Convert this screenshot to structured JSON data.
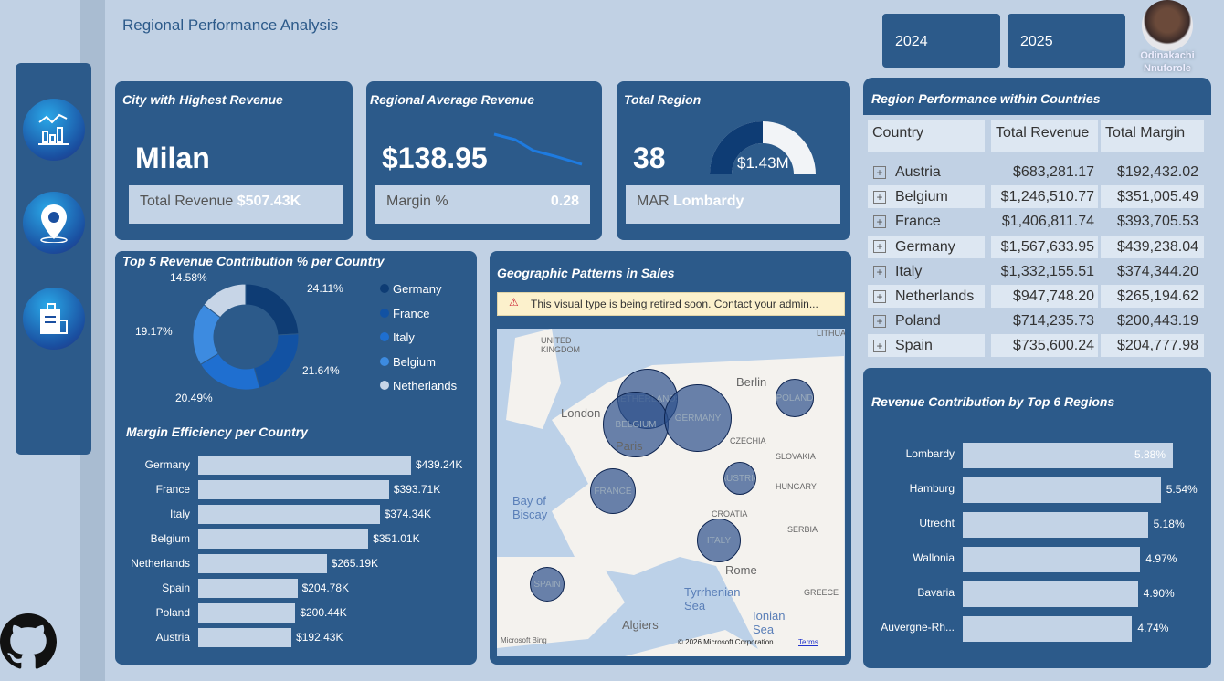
{
  "header": {
    "title": "Regional Performance Analysis",
    "years": [
      "2024",
      "2025"
    ],
    "user": {
      "name_line1": "Odinakachi",
      "name_line2": "Nnuforole"
    }
  },
  "sidebar": {
    "items": [
      {
        "icon": "analytics-chart-icon"
      },
      {
        "icon": "location-pin-icon"
      },
      {
        "icon": "dashboard-report-icon"
      }
    ],
    "footer_icon": "github-icon"
  },
  "kpi": {
    "city": {
      "title": "City with Highest Revenue",
      "value": "Milan",
      "sub_label": "Total Revenue",
      "sub_value": "$507.43K"
    },
    "avg": {
      "title": "Regional Average Revenue",
      "value": "$138.95",
      "sub_label": "Margin %",
      "sub_value": "0.28"
    },
    "region": {
      "title": "Total Region",
      "value": "38",
      "gauge_value": "$1.43M",
      "sub_label": "MAR",
      "sub_value": "Lombardy"
    }
  },
  "donut": {
    "title": "Top 5 Revenue Contribution % per Country",
    "slices": [
      {
        "name": "Germany",
        "pct": 24.11,
        "label": "24.11%",
        "color": "#0e3c74"
      },
      {
        "name": "France",
        "pct": 21.64,
        "label": "21.64%",
        "color": "#1252a3"
      },
      {
        "name": "Italy",
        "pct": 20.49,
        "label": "20.49%",
        "color": "#1f6fd0"
      },
      {
        "name": "Belgium",
        "pct": 19.17,
        "label": "19.17%",
        "color": "#3d8be0"
      },
      {
        "name": "Netherlands",
        "pct": 14.58,
        "label": "14.58%",
        "color": "#c7d5e7"
      }
    ]
  },
  "margin": {
    "title": "Margin Efficiency per Country",
    "rows": [
      {
        "name": "Germany",
        "value": 439.24,
        "label": "$439.24K"
      },
      {
        "name": "France",
        "value": 393.71,
        "label": "$393.71K"
      },
      {
        "name": "Italy",
        "value": 374.34,
        "label": "$374.34K"
      },
      {
        "name": "Belgium",
        "value": 351.01,
        "label": "$351.01K"
      },
      {
        "name": "Netherlands",
        "value": 265.19,
        "label": "$265.19K"
      },
      {
        "name": "Spain",
        "value": 204.78,
        "label": "$204.78K"
      },
      {
        "name": "Poland",
        "value": 200.44,
        "label": "$200.44K"
      },
      {
        "name": "Austria",
        "value": 192.43,
        "label": "$192.43K"
      }
    ]
  },
  "map": {
    "title": "Geographic Patterns in Sales",
    "warning": "This visual type is being retired soon. Contact your admin...",
    "bubbles": [
      "NETHERLANDS",
      "BELGIUM",
      "GERMANY",
      "POLAND",
      "FRANCE",
      "AUSTRIA",
      "ITALY",
      "SPAIN"
    ],
    "places": [
      "UNITED KINGDOM",
      "London",
      "Paris",
      "Berlin",
      "CZECHIA",
      "SLOVAKIA",
      "HUNGARY",
      "CROATIA",
      "SERBIA",
      "Rome",
      "Tyrrhenian Sea",
      "Ionian Sea",
      "GREECE",
      "Bay of Biscay",
      "Algiers",
      "LITHUA"
    ],
    "provider": "Microsoft Bing",
    "copyright": "© 2026 Microsoft Corporation",
    "terms": "Terms"
  },
  "table": {
    "title": "Region Performance within Countries",
    "columns": [
      "Country",
      "Total Revenue",
      "Total Margin"
    ],
    "rows": [
      [
        "Austria",
        "$683,281.17",
        "$192,432.02"
      ],
      [
        "Belgium",
        "$1,246,510.77",
        "$351,005.49"
      ],
      [
        "France",
        "$1,406,811.74",
        "$393,705.53"
      ],
      [
        "Germany",
        "$1,567,633.95",
        "$439,238.04"
      ],
      [
        "Italy",
        "$1,332,155.51",
        "$374,344.20"
      ],
      [
        "Netherlands",
        "$947,748.20",
        "$265,194.62"
      ],
      [
        "Poland",
        "$714,235.73",
        "$200,443.19"
      ],
      [
        "Spain",
        "$735,600.24",
        "$204,777.98"
      ]
    ]
  },
  "regions": {
    "title": "Revenue Contribution by Top 6 Regions",
    "rows": [
      {
        "name": "Lombardy",
        "value": 5.88,
        "label": "5.88%"
      },
      {
        "name": "Hamburg",
        "value": 5.54,
        "label": "5.54%"
      },
      {
        "name": "Utrecht",
        "value": 5.18,
        "label": "5.18%"
      },
      {
        "name": "Wallonia",
        "value": 4.97,
        "label": "4.97%"
      },
      {
        "name": "Bavaria",
        "value": 4.9,
        "label": "4.90%"
      },
      {
        "name": "Auvergne-Rh...",
        "value": 4.74,
        "label": "4.74%"
      }
    ]
  }
}
